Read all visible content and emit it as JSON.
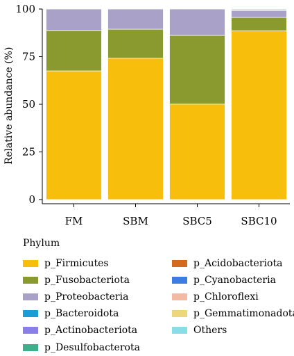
{
  "chart_data": {
    "type": "bar",
    "stacked": true,
    "categories": [
      "FM",
      "SBM",
      "SBC5",
      "SBC10"
    ],
    "ylabel": "Relative abundance (%)",
    "ylim": [
      0,
      100
    ],
    "yticks": [
      "0",
      "25",
      "50",
      "75",
      "100"
    ],
    "legend_title": "Phylum",
    "legend_position": "bottom",
    "series": [
      {
        "name": "p_Firmicutes",
        "color": "#F7BE0C",
        "values": [
          67.5,
          74.2,
          50.1,
          88.6
        ]
      },
      {
        "name": "p_Fusobacteriota",
        "color": "#8A9A2F",
        "values": [
          21.3,
          15.2,
          36.1,
          7.0
        ]
      },
      {
        "name": "p_Proteobacteria",
        "color": "#A9A1C8",
        "values": [
          11.2,
          10.6,
          13.8,
          3.7
        ]
      },
      {
        "name": "p_Bacteroidota",
        "color": "#1B9ED6",
        "values": [
          0,
          0,
          0,
          0.2
        ]
      },
      {
        "name": "p_Actinobacteriota",
        "color": "#8A7EE8",
        "values": [
          0,
          0,
          0,
          0.1
        ]
      },
      {
        "name": "p_Desulfobacterota",
        "color": "#3DB08B",
        "values": [
          0,
          0,
          0,
          0.4
        ]
      },
      {
        "name": "p_Acidobacteriota",
        "color": "#D46A1D",
        "values": [
          0,
          0,
          0,
          0
        ]
      },
      {
        "name": "p_Cyanobacteria",
        "color": "#3D7CE0",
        "values": [
          0,
          0,
          0,
          0
        ]
      },
      {
        "name": "p_Chloroflexi",
        "color": "#F4B9A2",
        "values": [
          0,
          0,
          0,
          0
        ]
      },
      {
        "name": "p_Gemmatimonadota",
        "color": "#EDD77A",
        "values": [
          0,
          0,
          0,
          0
        ]
      },
      {
        "name": "Others",
        "color": "#88DDE6",
        "values": [
          0,
          0,
          0,
          0
        ]
      }
    ]
  }
}
